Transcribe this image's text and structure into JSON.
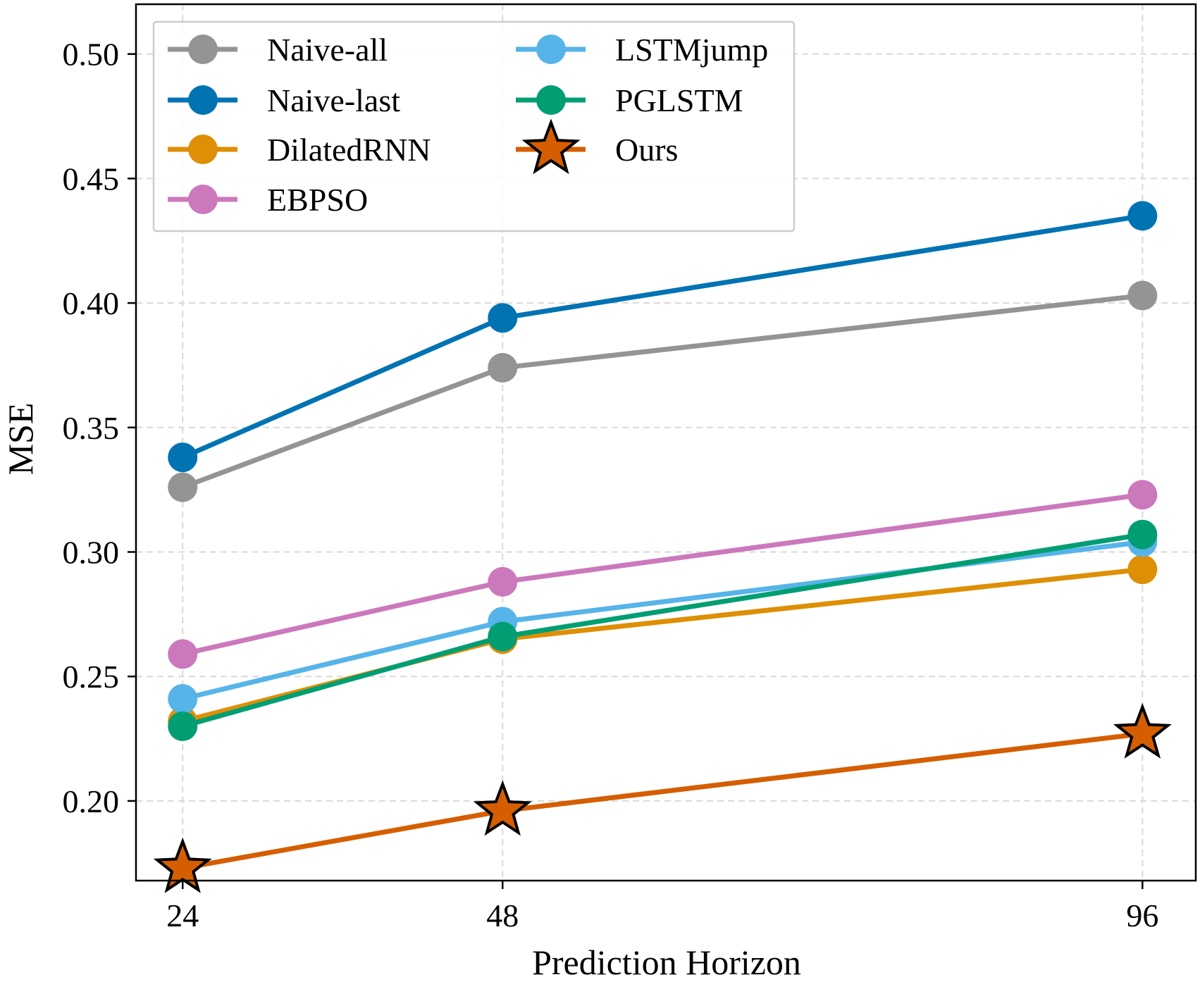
{
  "chart_data": {
    "type": "line",
    "title": "",
    "xlabel": "Prediction Horizon",
    "ylabel": "MSE",
    "x": [
      24,
      48,
      96
    ],
    "x_tick_labels": [
      "24",
      "48",
      "96"
    ],
    "y_ticks": [
      0.2,
      0.25,
      0.3,
      0.35,
      0.4,
      0.45,
      0.5
    ],
    "y_tick_labels": [
      "0.20",
      "0.25",
      "0.30",
      "0.35",
      "0.40",
      "0.45",
      "0.50"
    ],
    "xlim": [
      20.5,
      100
    ],
    "ylim": [
      0.168,
      0.52
    ],
    "grid": true,
    "legend_position": "top-left",
    "series": [
      {
        "name": "Naive-all",
        "values": [
          0.326,
          0.374,
          0.403
        ],
        "color": "#949494",
        "marker": "circle"
      },
      {
        "name": "Naive-last",
        "values": [
          0.338,
          0.394,
          0.435
        ],
        "color": "#0173b2",
        "marker": "circle"
      },
      {
        "name": "DilatedRNN",
        "values": [
          0.232,
          0.265,
          0.293
        ],
        "color": "#de8f05",
        "marker": "circle"
      },
      {
        "name": "EBPSO",
        "values": [
          0.259,
          0.288,
          0.323
        ],
        "color": "#cc78bc",
        "marker": "circle"
      },
      {
        "name": "LSTMjump",
        "values": [
          0.241,
          0.272,
          0.304
        ],
        "color": "#56b4e9",
        "marker": "circle"
      },
      {
        "name": "PGLSTM",
        "values": [
          0.23,
          0.266,
          0.307
        ],
        "color": "#029e73",
        "marker": "circle"
      },
      {
        "name": "Ours",
        "values": [
          0.173,
          0.196,
          0.227
        ],
        "color": "#d55e00",
        "marker": "star"
      }
    ]
  }
}
